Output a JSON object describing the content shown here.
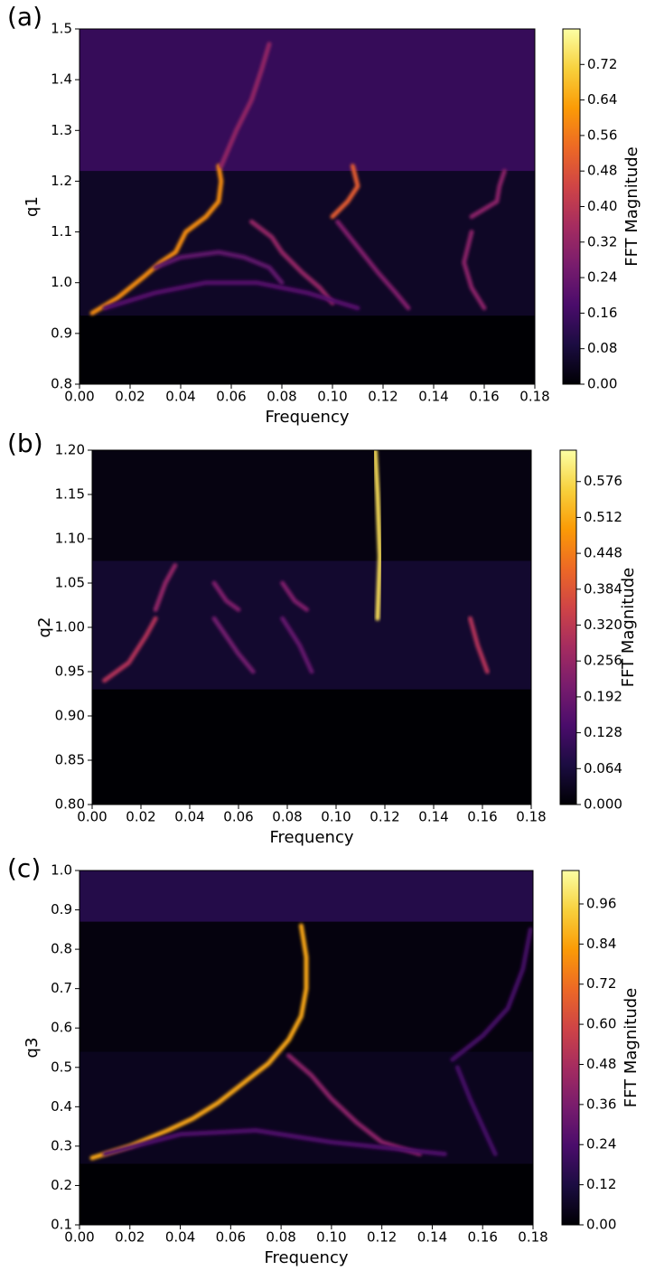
{
  "chart_data": [
    {
      "type": "heatmap",
      "panel_label": "(a)",
      "xlabel": "Frequency",
      "ylabel": "q1",
      "colorbar_label": "FFT Magnitude",
      "colormap": "inferno",
      "xlim": [
        0,
        0.18
      ],
      "ylim": [
        0.8,
        1.5
      ],
      "clim": [
        0,
        0.8
      ],
      "xticks": [
        {
          "value": 0,
          "label": "0.00"
        },
        {
          "value": 0.02,
          "label": "0.02"
        },
        {
          "value": 0.04,
          "label": "0.04"
        },
        {
          "value": 0.06,
          "label": "0.06"
        },
        {
          "value": 0.08,
          "label": "0.08"
        },
        {
          "value": 0.1,
          "label": "0.10"
        },
        {
          "value": 0.12,
          "label": "0.12"
        },
        {
          "value": 0.14,
          "label": "0.14"
        },
        {
          "value": 0.16,
          "label": "0.16"
        },
        {
          "value": 0.18,
          "label": "0.18"
        }
      ],
      "yticks": [
        {
          "value": 0.8,
          "label": "0.8"
        },
        {
          "value": 0.9,
          "label": "0.9"
        },
        {
          "value": 1,
          "label": "1.0"
        },
        {
          "value": 1.1,
          "label": "1.1"
        },
        {
          "value": 1.2,
          "label": "1.2"
        },
        {
          "value": 1.3,
          "label": "1.3"
        },
        {
          "value": 1.4,
          "label": "1.4"
        },
        1.5
      ],
      "cticks": [
        {
          "value": 0,
          "label": "0.00"
        },
        {
          "value": 0.08,
          "label": "0.08"
        },
        {
          "value": 0.16,
          "label": "0.16"
        },
        {
          "value": 0.24,
          "label": "0.24"
        },
        {
          "value": 0.32,
          "label": "0.32"
        },
        {
          "value": 0.4,
          "label": "0.40"
        },
        {
          "value": 0.48,
          "label": "0.48"
        },
        {
          "value": 0.56,
          "label": "0.56"
        },
        {
          "value": 0.64,
          "label": "0.64"
        },
        {
          "value": 0.72,
          "label": "0.72"
        }
      ],
      "bands": [
        {
          "y": [
            0.935,
            1.22
          ],
          "level": 0.05
        },
        {
          "y": [
            1.22,
            1.5
          ],
          "level": 0.14
        }
      ],
      "ridges": [
        {
          "x": [
            0.005,
            0.015,
            0.025,
            0.032,
            0.038,
            0.042,
            0.05,
            0.055,
            0.056,
            0.055
          ],
          "y": [
            0.94,
            0.97,
            1.01,
            1.04,
            1.06,
            1.1,
            1.13,
            1.16,
            1.2,
            1.23
          ],
          "level": 0.6
        },
        {
          "x": [
            0.056,
            0.062,
            0.068,
            0.072,
            0.075
          ],
          "y": [
            1.23,
            1.3,
            1.36,
            1.42,
            1.47
          ],
          "level": 0.32
        },
        {
          "x": [
            0.1,
            0.106,
            0.11,
            0.108
          ],
          "y": [
            1.13,
            1.16,
            1.19,
            1.23
          ],
          "level": 0.5
        },
        {
          "x": [
            0.068,
            0.076,
            0.08,
            0.088,
            0.095,
            0.1
          ],
          "y": [
            1.12,
            1.09,
            1.06,
            1.02,
            0.99,
            0.96
          ],
          "level": 0.32
        },
        {
          "x": [
            0.102,
            0.11,
            0.118,
            0.125,
            0.13
          ],
          "y": [
            1.12,
            1.07,
            1.02,
            0.98,
            0.95
          ],
          "level": 0.28
        },
        {
          "x": [
            0.155,
            0.152,
            0.155,
            0.16
          ],
          "y": [
            1.1,
            1.04,
            0.99,
            0.95
          ],
          "level": 0.3
        },
        {
          "x": [
            0.155,
            0.165,
            0.166,
            0.168
          ],
          "y": [
            1.13,
            1.16,
            1.19,
            1.22
          ],
          "level": 0.3
        },
        {
          "x": [
            0.01,
            0.03,
            0.05,
            0.07,
            0.09,
            0.11
          ],
          "y": [
            0.95,
            0.98,
            1.0,
            1.0,
            0.98,
            0.95
          ],
          "level": 0.2
        },
        {
          "x": [
            0.03,
            0.04,
            0.055,
            0.065,
            0.075,
            0.08
          ],
          "y": [
            1.03,
            1.05,
            1.06,
            1.05,
            1.03,
            1.0
          ],
          "level": 0.22
        }
      ]
    },
    {
      "type": "heatmap",
      "panel_label": "(b)",
      "xlabel": "Frequency",
      "ylabel": "q2",
      "colorbar_label": "FFT Magnitude",
      "colormap": "inferno",
      "xlim": [
        0,
        0.18
      ],
      "ylim": [
        0.8,
        1.2
      ],
      "clim": [
        0,
        0.632
      ],
      "xticks": [
        {
          "value": 0,
          "label": "0.00"
        },
        {
          "value": 0.02,
          "label": "0.02"
        },
        {
          "value": 0.04,
          "label": "0.04"
        },
        {
          "value": 0.06,
          "label": "0.06"
        },
        {
          "value": 0.08,
          "label": "0.08"
        },
        {
          "value": 0.1,
          "label": "0.10"
        },
        {
          "value": 0.12,
          "label": "0.12"
        },
        {
          "value": 0.14,
          "label": "0.14"
        },
        {
          "value": 0.16,
          "label": "0.16"
        },
        {
          "value": 0.18,
          "label": "0.18"
        }
      ],
      "yticks": [
        {
          "value": 0.8,
          "label": "0.80"
        },
        0.85,
        {
          "value": 0.9,
          "label": "0.90"
        },
        0.95,
        {
          "value": 1,
          "label": "1.00"
        },
        1.05,
        {
          "value": 1.1,
          "label": "1.10"
        },
        1.15,
        {
          "value": 1.2,
          "label": "1.20"
        }
      ],
      "cticks": [
        {
          "value": 0,
          "label": "0.000"
        },
        0.064,
        0.128,
        0.192,
        {
          "value": 0.256,
          "label": "0.256"
        },
        {
          "value": 0.32,
          "label": "0.320"
        },
        0.384,
        0.448,
        0.512,
        0.576
      ],
      "bands": [
        {
          "y": [
            0.93,
            1.075
          ],
          "level": 0.05
        },
        {
          "y": [
            1.075,
            1.2
          ],
          "level": 0.015
        }
      ],
      "ridges": [
        {
          "x": [
            0.117,
            0.118,
            0.117,
            0.116
          ],
          "y": [
            1.01,
            1.08,
            1.15,
            1.2
          ],
          "level": 0.58
        },
        {
          "x": [
            0.005,
            0.015,
            0.022,
            0.026
          ],
          "y": [
            0.94,
            0.96,
            0.99,
            1.01
          ],
          "level": 0.3
        },
        {
          "x": [
            0.026,
            0.03,
            0.034
          ],
          "y": [
            1.02,
            1.05,
            1.07
          ],
          "level": 0.25
        },
        {
          "x": [
            0.05,
            0.055,
            0.06,
            0.066
          ],
          "y": [
            1.01,
            0.99,
            0.97,
            0.95
          ],
          "level": 0.2
        },
        {
          "x": [
            0.05,
            0.055,
            0.06
          ],
          "y": [
            1.05,
            1.03,
            1.02
          ],
          "level": 0.22
        },
        {
          "x": [
            0.078,
            0.085,
            0.09
          ],
          "y": [
            1.01,
            0.98,
            0.95
          ],
          "level": 0.18
        },
        {
          "x": [
            0.078,
            0.083,
            0.088
          ],
          "y": [
            1.05,
            1.03,
            1.02
          ],
          "level": 0.22
        },
        {
          "x": [
            0.155,
            0.158,
            0.162
          ],
          "y": [
            1.01,
            0.98,
            0.95
          ],
          "level": 0.3
        }
      ]
    },
    {
      "type": "heatmap",
      "panel_label": "(c)",
      "xlabel": "Frequency",
      "ylabel": "q3",
      "colorbar_label": "FFT Magnitude",
      "colormap": "inferno",
      "xlim": [
        0,
        0.18
      ],
      "ylim": [
        0.1,
        1.0
      ],
      "clim": [
        0,
        1.06
      ],
      "xticks": [
        {
          "value": 0,
          "label": "0.00"
        },
        {
          "value": 0.02,
          "label": "0.02"
        },
        {
          "value": 0.04,
          "label": "0.04"
        },
        {
          "value": 0.06,
          "label": "0.06"
        },
        {
          "value": 0.08,
          "label": "0.08"
        },
        {
          "value": 0.1,
          "label": "0.10"
        },
        {
          "value": 0.12,
          "label": "0.12"
        },
        {
          "value": 0.14,
          "label": "0.14"
        },
        {
          "value": 0.16,
          "label": "0.16"
        },
        {
          "value": 0.18,
          "label": "0.18"
        }
      ],
      "yticks": [
        0.1,
        0.2,
        0.3,
        0.4,
        0.5,
        0.6,
        0.7,
        0.8,
        0.9,
        {
          "value": 1,
          "label": "1.0"
        }
      ],
      "cticks": [
        {
          "value": 0,
          "label": "0.00"
        },
        0.12,
        0.24,
        0.36,
        0.48,
        {
          "value": 0.6,
          "label": "0.60"
        },
        0.72,
        0.84,
        0.96
      ],
      "bands": [
        {
          "y": [
            0.255,
            0.54
          ],
          "level": 0.05
        },
        {
          "y": [
            0.54,
            0.87
          ],
          "level": 0.02
        },
        {
          "y": [
            0.87,
            1.0
          ],
          "level": 0.14
        }
      ],
      "ridges": [
        {
          "x": [
            0.005,
            0.02,
            0.035,
            0.045,
            0.055,
            0.065,
            0.075,
            0.083,
            0.088,
            0.09,
            0.09,
            0.088
          ],
          "y": [
            0.27,
            0.3,
            0.34,
            0.37,
            0.41,
            0.46,
            0.51,
            0.57,
            0.63,
            0.7,
            0.78,
            0.86
          ],
          "level": 0.85
        },
        {
          "x": [
            0.083,
            0.092,
            0.1,
            0.11,
            0.12,
            0.135
          ],
          "y": [
            0.53,
            0.48,
            0.42,
            0.36,
            0.31,
            0.28
          ],
          "level": 0.4
        },
        {
          "x": [
            0.01,
            0.04,
            0.07,
            0.1,
            0.13,
            0.145
          ],
          "y": [
            0.28,
            0.33,
            0.34,
            0.31,
            0.29,
            0.28
          ],
          "level": 0.25
        },
        {
          "x": [
            0.148,
            0.16,
            0.17,
            0.176,
            0.179
          ],
          "y": [
            0.52,
            0.58,
            0.65,
            0.75,
            0.85
          ],
          "level": 0.22
        },
        {
          "x": [
            0.15,
            0.155,
            0.16,
            0.165
          ],
          "y": [
            0.5,
            0.42,
            0.35,
            0.28
          ],
          "level": 0.22
        }
      ]
    }
  ]
}
